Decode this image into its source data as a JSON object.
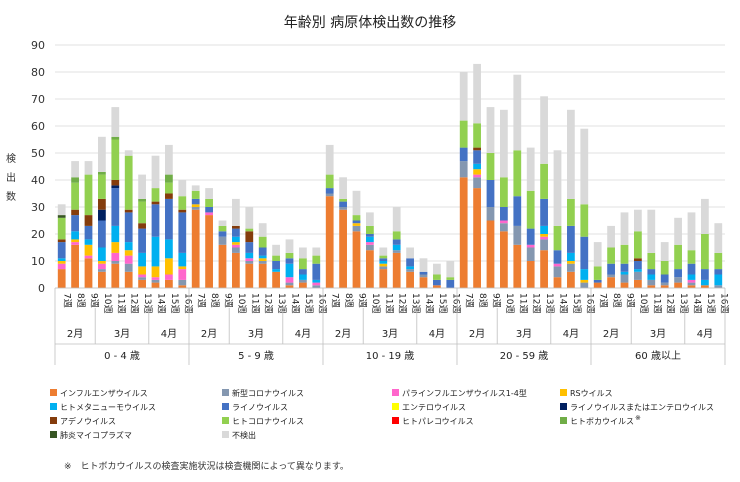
{
  "chart_data": {
    "type": "bar",
    "stacked": true,
    "title": "年齢別 病原体検出数の推移",
    "ylabel": "検出数",
    "ylim": [
      0,
      90
    ],
    "yticks": [
      0,
      10,
      20,
      30,
      40,
      50,
      60,
      70,
      80,
      90
    ],
    "grid": true,
    "legend_position": "bottom",
    "week_labels": [
      "7週",
      "8週",
      "9週",
      "10週",
      "11週",
      "12週",
      "13週",
      "14週",
      "15週",
      "16週"
    ],
    "month_groups": [
      {
        "label": "2月",
        "start": 0,
        "end": 2
      },
      {
        "label": "3月",
        "start": 3,
        "end": 6
      },
      {
        "label": "4月",
        "start": 7,
        "end": 9
      }
    ],
    "age_groups": [
      "0 - 4 歳",
      "5 - 9 歳",
      "10 - 19 歳",
      "20 - 59 歳",
      "60 歳以上"
    ],
    "series": [
      {
        "name": "インフルエンザウイルス",
        "color": "#ed7d31"
      },
      {
        "name": "新型コロナウイルス",
        "color": "#8497b0"
      },
      {
        "name": "パラインフルエンザウイルス1-4型",
        "color": "#ff66cc"
      },
      {
        "name": "RSウイルス",
        "color": "#ffc000"
      },
      {
        "name": "ヒトメタニューモウイルス",
        "color": "#00b0f0"
      },
      {
        "name": "ライノウイルス",
        "color": "#4472c4"
      },
      {
        "name": "エンテロウイルス",
        "color": "#ffff00"
      },
      {
        "name": "ライノウイルスまたはエンテロウイルス",
        "color": "#002060"
      },
      {
        "name": "アデノウイルス",
        "color": "#843c0c"
      },
      {
        "name": "ヒトコロナウイルス",
        "color": "#92d050"
      },
      {
        "name": "ヒトパレコウイルス",
        "color": "#ff0000"
      },
      {
        "name": "ヒトボカウイルス",
        "color": "#70ad47"
      },
      {
        "name": "肺炎マイコプラズマ",
        "color": "#375623"
      },
      {
        "name": "不検出",
        "color": "#d9d9d9"
      }
    ],
    "legend_note_mark": "※",
    "footnote": "※　ヒトボカウイルスの検査実施状況は検査機関によって異なります。",
    "groups": [
      {
        "age": "0 - 4 歳",
        "weeks": [
          {
            "week": "7週",
            "values": [
              7,
              0,
              2,
              1,
              1,
              6,
              0,
              0,
              1,
              8,
              0,
              0,
              1,
              4
            ]
          },
          {
            "week": "8週",
            "values": [
              16,
              0,
              1,
              1,
              3,
              6,
              0,
              0,
              2,
              10,
              0,
              2,
              0,
              6
            ]
          },
          {
            "week": "9週",
            "values": [
              11,
              0,
              1,
              4,
              2,
              5,
              0,
              0,
              4,
              15,
              0,
              0,
              0,
              5
            ]
          },
          {
            "week": "10週",
            "values": [
              6,
              1,
              2,
              1,
              5,
              10,
              0,
              4,
              4,
              9,
              0,
              1,
              0,
              13
            ]
          },
          {
            "week": "11週",
            "values": [
              9,
              1,
              3,
              4,
              6,
              14,
              0,
              1,
              2,
              15,
              0,
              1,
              0,
              11
            ]
          },
          {
            "week": "12週",
            "values": [
              6,
              3,
              3,
              2,
              3,
              11,
              0,
              0,
              1,
              20,
              0,
              0,
              0,
              2
            ]
          },
          {
            "week": "13週",
            "values": [
              3,
              1,
              1,
              3,
              5,
              9,
              0,
              0,
              2,
              8,
              0,
              1,
              0,
              9
            ]
          },
          {
            "week": "14週",
            "values": [
              2,
              1,
              1,
              4,
              11,
              12,
              0,
              0,
              1,
              5,
              0,
              0,
              0,
              12
            ]
          },
          {
            "week": "15週",
            "values": [
              3,
              0,
              2,
              6,
              7,
              15,
              0,
              0,
              2,
              4,
              0,
              3,
              0,
              11
            ]
          },
          {
            "week": "16週",
            "values": [
              1,
              2,
              4,
              1,
              5,
              15,
              0,
              0,
              1,
              5,
              0,
              0,
              0,
              6
            ]
          }
        ]
      },
      {
        "age": "5 - 9 歳",
        "weeks": [
          {
            "week": "7週",
            "values": [
              29,
              1,
              0,
              1,
              0,
              2,
              0,
              0,
              0,
              3,
              0,
              0,
              0,
              2
            ]
          },
          {
            "week": "8週",
            "values": [
              27,
              0,
              1,
              0,
              0,
              2,
              0,
              0,
              0,
              3,
              0,
              0,
              0,
              4
            ]
          },
          {
            "week": "9週",
            "values": [
              16,
              3,
              0,
              0,
              0,
              2,
              0,
              0,
              0,
              2,
              0,
              0,
              0,
              2
            ]
          },
          {
            "week": "10週",
            "values": [
              13,
              2,
              1,
              1,
              2,
              3,
              0,
              0,
              1,
              0,
              0,
              0,
              0,
              10
            ]
          },
          {
            "week": "11週",
            "values": [
              9,
              1,
              1,
              0,
              2,
              4,
              0,
              0,
              4,
              1,
              0,
              0,
              0,
              8
            ]
          },
          {
            "week": "12週",
            "values": [
              9,
              1,
              0,
              1,
              1,
              3,
              0,
              0,
              0,
              4,
              0,
              0,
              0,
              5
            ]
          },
          {
            "week": "13週",
            "values": [
              6,
              0,
              0,
              0,
              1,
              3,
              0,
              0,
              0,
              2,
              0,
              0,
              0,
              4
            ]
          },
          {
            "week": "14週",
            "values": [
              1,
              1,
              2,
              0,
              5,
              2,
              0,
              0,
              0,
              2,
              0,
              0,
              0,
              5
            ]
          },
          {
            "week": "15週",
            "values": [
              2,
              1,
              0,
              0,
              2,
              2,
              0,
              0,
              0,
              4,
              0,
              0,
              0,
              4
            ]
          },
          {
            "week": "16週",
            "values": [
              0,
              1,
              1,
              0,
              1,
              6,
              0,
              0,
              0,
              3,
              0,
              0,
              0,
              3
            ]
          }
        ]
      },
      {
        "age": "10 - 19 歳",
        "weeks": [
          {
            "week": "7週",
            "values": [
              34,
              1,
              0,
              0,
              0,
              2,
              0,
              0,
              0,
              5,
              0,
              0,
              0,
              11
            ]
          },
          {
            "week": "8週",
            "values": [
              29,
              1,
              0,
              0,
              0,
              2,
              0,
              0,
              0,
              1,
              0,
              0,
              0,
              8
            ]
          },
          {
            "week": "9週",
            "values": [
              21,
              2,
              0,
              1,
              0,
              1,
              0,
              0,
              0,
              2,
              0,
              0,
              0,
              9
            ]
          },
          {
            "week": "10週",
            "values": [
              14,
              2,
              1,
              0,
              2,
              1,
              0,
              0,
              0,
              3,
              0,
              0,
              0,
              5
            ]
          },
          {
            "week": "11週",
            "values": [
              7,
              1,
              0,
              1,
              1,
              1,
              0,
              0,
              0,
              1,
              0,
              0,
              0,
              3
            ]
          },
          {
            "week": "12週",
            "values": [
              13,
              1,
              0,
              0,
              2,
              2,
              0,
              0,
              0,
              3,
              0,
              0,
              0,
              9
            ]
          },
          {
            "week": "13週",
            "values": [
              6,
              1,
              0,
              0,
              1,
              3,
              0,
              0,
              0,
              0,
              0,
              0,
              0,
              4
            ]
          },
          {
            "week": "14週",
            "values": [
              4,
              1,
              0,
              0,
              0,
              1,
              0,
              0,
              0,
              0,
              0,
              0,
              0,
              5
            ]
          },
          {
            "week": "15週",
            "values": [
              1,
              0,
              0,
              0,
              0,
              2,
              0,
              0,
              0,
              2,
              0,
              0,
              0,
              4
            ]
          },
          {
            "week": "16週",
            "values": [
              0,
              0,
              0,
              0,
              0,
              3,
              0,
              0,
              0,
              1,
              0,
              0,
              0,
              6
            ]
          }
        ]
      },
      {
        "age": "20 - 59 歳",
        "weeks": [
          {
            "week": "7週",
            "values": [
              41,
              6,
              0,
              0,
              0,
              5,
              0,
              0,
              0,
              10,
              0,
              0,
              0,
              18
            ]
          },
          {
            "week": "8週",
            "values": [
              37,
              4,
              1,
              2,
              2,
              5,
              0,
              0,
              1,
              9,
              0,
              0,
              0,
              22
            ]
          },
          {
            "week": "9週",
            "values": [
              25,
              5,
              0,
              0,
              0,
              10,
              0,
              0,
              0,
              10,
              0,
              0,
              0,
              17
            ]
          },
          {
            "week": "10週",
            "values": [
              21,
              3,
              1,
              0,
              0,
              5,
              0,
              0,
              0,
              11,
              0,
              0,
              0,
              25
            ]
          },
          {
            "week": "11週",
            "values": [
              16,
              7,
              0,
              0,
              0,
              11,
              0,
              0,
              0,
              17,
              0,
              0,
              0,
              28
            ]
          },
          {
            "week": "12週",
            "values": [
              10,
              5,
              1,
              0,
              0,
              6,
              0,
              0,
              0,
              14,
              0,
              0,
              0,
              16
            ]
          },
          {
            "week": "13週",
            "values": [
              14,
              4,
              1,
              1,
              3,
              10,
              0,
              0,
              0,
              13,
              0,
              0,
              0,
              25
            ]
          },
          {
            "week": "14週",
            "values": [
              4,
              4,
              1,
              0,
              0,
              5,
              0,
              0,
              0,
              9,
              0,
              0,
              0,
              28
            ]
          },
          {
            "week": "15週",
            "values": [
              6,
              3,
              0,
              1,
              3,
              10,
              0,
              0,
              0,
              10,
              0,
              0,
              0,
              33
            ]
          },
          {
            "week": "16週",
            "values": [
              0,
              2,
              0,
              1,
              4,
              12,
              0,
              0,
              0,
              12,
              0,
              0,
              0,
              28
            ]
          }
        ]
      },
      {
        "age": "60 歳以上",
        "weeks": [
          {
            "week": "7週",
            "values": [
              2,
              0,
              0,
              0,
              0,
              1,
              0,
              0,
              0,
              5,
              0,
              0,
              0,
              9
            ]
          },
          {
            "week": "8週",
            "values": [
              4,
              1,
              0,
              0,
              0,
              4,
              0,
              0,
              0,
              6,
              0,
              0,
              0,
              8
            ]
          },
          {
            "week": "9週",
            "values": [
              2,
              3,
              0,
              0,
              1,
              3,
              0,
              0,
              0,
              7,
              0,
              0,
              0,
              12
            ]
          },
          {
            "week": "10週",
            "values": [
              3,
              3,
              0,
              0,
              1,
              3,
              0,
              0,
              1,
              10,
              0,
              0,
              0,
              8
            ]
          },
          {
            "week": "11週",
            "values": [
              1,
              2,
              0,
              0,
              2,
              2,
              0,
              0,
              0,
              6,
              0,
              0,
              0,
              16
            ]
          },
          {
            "week": "12週",
            "values": [
              1,
              1,
              0,
              0,
              0,
              3,
              0,
              0,
              0,
              5,
              0,
              0,
              0,
              7
            ]
          },
          {
            "week": "13週",
            "values": [
              2,
              2,
              0,
              0,
              0,
              3,
              0,
              0,
              0,
              9,
              0,
              0,
              0,
              10
            ]
          },
          {
            "week": "14週",
            "values": [
              1,
              1,
              1,
              0,
              2,
              4,
              0,
              0,
              0,
              5,
              0,
              0,
              0,
              14
            ]
          },
          {
            "week": "15週",
            "values": [
              1,
              0,
              0,
              0,
              2,
              4,
              0,
              0,
              0,
              13,
              0,
              0,
              0,
              13
            ]
          },
          {
            "week": "16週",
            "values": [
              0,
              1,
              0,
              0,
              4,
              2,
              0,
              0,
              0,
              6,
              0,
              0,
              0,
              11
            ]
          }
        ]
      }
    ]
  }
}
